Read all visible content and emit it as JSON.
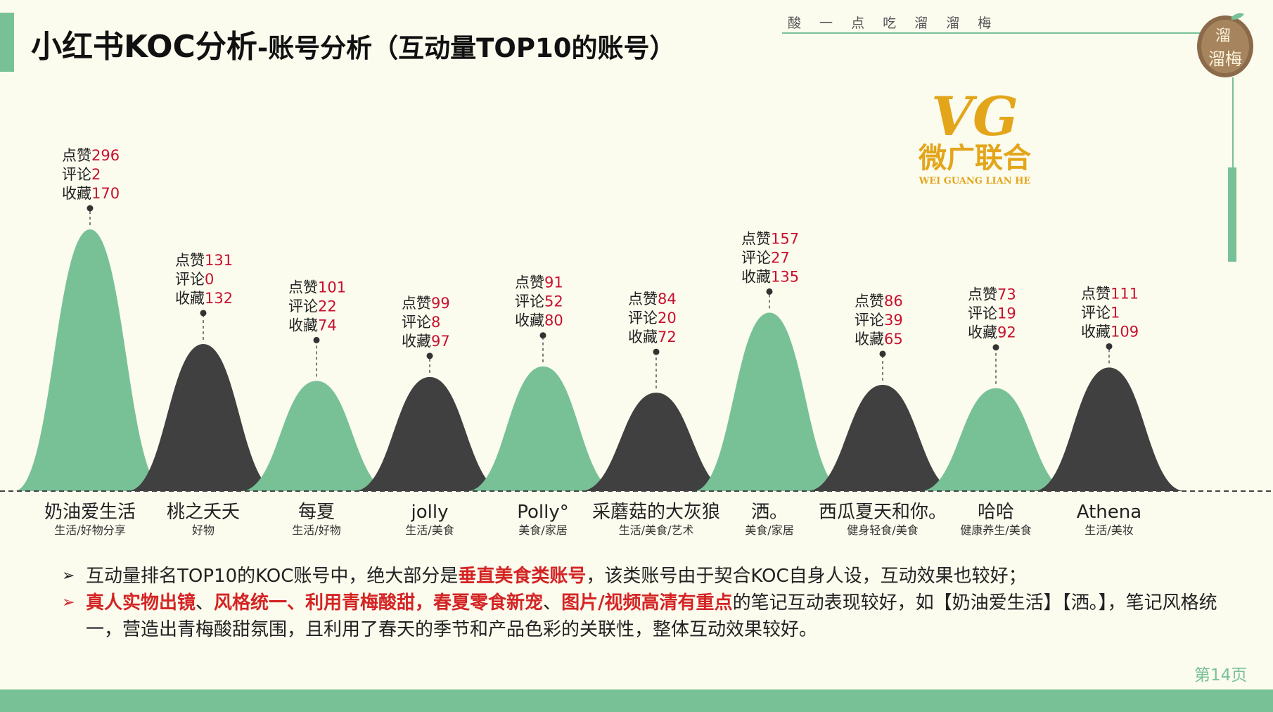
{
  "title": {
    "main": "小红书KOC分析",
    "sub": "-账号分析（互动量TOP10的账号）"
  },
  "slogan": "酸 一 点   吃 溜 溜 梅",
  "brand_seal": {
    "line1": "溜",
    "line2": "溜梅"
  },
  "vg_logo": {
    "mark": "VG",
    "chinese": "微广联合",
    "pinyin": "WEI GUANG LIAN HE"
  },
  "colors": {
    "green": "#78c196",
    "dark": "#404040",
    "red": "#c8102e",
    "background": "#fbfbee"
  },
  "chart_data": {
    "type": "area",
    "metric_labels": {
      "likes": "点赞",
      "comments": "评论",
      "saves": "收藏"
    },
    "accounts": [
      {
        "name": "奶油爱生活",
        "tags": "生活/好物分享",
        "likes": 296,
        "comments": 2,
        "saves": 170,
        "color": "green"
      },
      {
        "name": "桃之夭夭",
        "tags": "好物",
        "likes": 131,
        "comments": 0,
        "saves": 132,
        "color": "dark"
      },
      {
        "name": "每夏",
        "tags": "生活/好物",
        "likes": 101,
        "comments": 22,
        "saves": 74,
        "color": "green"
      },
      {
        "name": "jolly",
        "tags": "生活/美食",
        "likes": 99,
        "comments": 8,
        "saves": 97,
        "color": "dark"
      },
      {
        "name": "Polly°",
        "tags": "美食/家居",
        "likes": 91,
        "comments": 52,
        "saves": 80,
        "color": "green"
      },
      {
        "name": "采蘑菇的大灰狼",
        "tags": "生活/美食/艺术",
        "likes": 84,
        "comments": 20,
        "saves": 72,
        "color": "dark"
      },
      {
        "name": "洒。",
        "tags": "美食/家居",
        "likes": 157,
        "comments": 27,
        "saves": 135,
        "color": "green"
      },
      {
        "name": "西瓜夏天和你。",
        "tags": "健身轻食/美食",
        "likes": 86,
        "comments": 39,
        "saves": 65,
        "color": "dark"
      },
      {
        "name": "哈哈",
        "tags": "健康养生/美食",
        "likes": 73,
        "comments": 19,
        "saves": 92,
        "color": "green"
      },
      {
        "name": "Athena",
        "tags": "生活/美妆",
        "likes": 111,
        "comments": 1,
        "saves": 109,
        "color": "dark"
      }
    ]
  },
  "notes": {
    "note1": {
      "before": "互动量排名TOP10的KOC账号中，绝大部分是",
      "highlight": "垂直美食类账号",
      "after": "，该类账号由于契合KOC自身人设，互动效果也较好；"
    },
    "note2": {
      "h1": "真人实物出镜",
      "s1": "、",
      "h2": "风格统一、利用青梅酸甜，春夏零食新宠",
      "s2": "、",
      "h3": "图片/视频高清有重点",
      "after": "的笔记互动表现较好，如【奶油爱生活】【洒。】，笔记风格统一，营造出青梅酸甜氛围，且利用了春天的季节和产品色彩的关联性，整体互动效果较好。"
    }
  },
  "page_number": "第14页"
}
